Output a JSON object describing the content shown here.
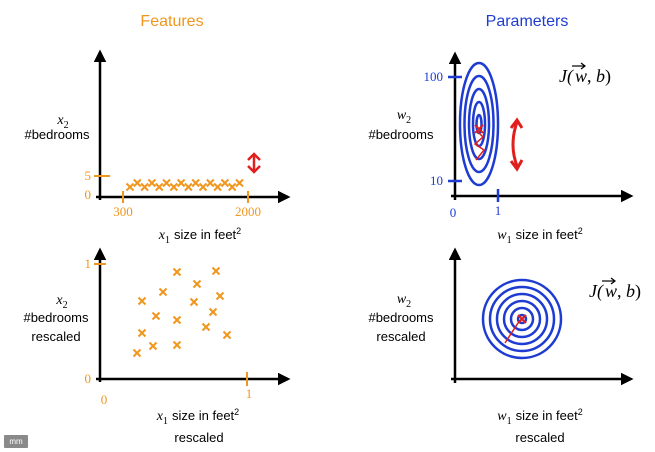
{
  "headers": {
    "features": "Features",
    "parameters": "Parameters"
  },
  "colors": {
    "orange": "#f0961e",
    "blue": "#1e3cd2",
    "red": "#e01e1e",
    "axis": "#000000"
  },
  "features_top": {
    "y_var": "x",
    "y_sub": "2",
    "y_desc": "#bedrooms",
    "x_var": "x",
    "x_sub": "1",
    "x_desc": "size in feet",
    "x_sup": "2",
    "ytick_5": "5",
    "ytick_0": "0",
    "xtick_300": "300",
    "xtick_2000": "2000"
  },
  "features_bottom": {
    "y_var": "x",
    "y_sub": "2",
    "y_desc": "#bedrooms",
    "y_desc2": "rescaled",
    "x_var": "x",
    "x_sub": "1",
    "x_desc": "size in feet",
    "x_sup": "2",
    "x_desc2": "rescaled",
    "ytick_1": "1",
    "ytick_0": "0",
    "xtick_0": "0",
    "xtick_1": "1"
  },
  "params_top": {
    "cost": "J(w, b)",
    "y_var": "w",
    "y_sub": "2",
    "y_desc": "#bedrooms",
    "x_var": "w",
    "x_sub": "1",
    "x_desc": "size in feet",
    "x_sup": "2",
    "ytick_100": "100",
    "ytick_10": "10",
    "xtick_0": "0",
    "xtick_1": "1"
  },
  "params_bottom": {
    "cost": "J(w, b)",
    "y_var": "w",
    "y_sub": "2",
    "y_desc": "#bedrooms",
    "y_desc2": "rescaled",
    "x_var": "w",
    "x_sub": "1",
    "x_desc": "size in feet",
    "x_sup": "2",
    "x_desc2": "rescaled"
  },
  "badge": "mm"
}
